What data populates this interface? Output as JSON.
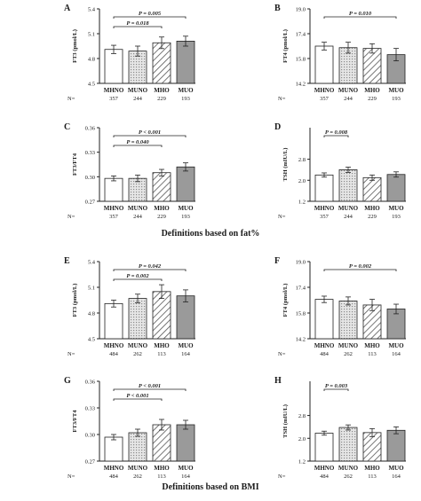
{
  "category_labels": [
    "MHNO",
    "MUNO",
    "MHO",
    "MUO"
  ],
  "n_prefix": "N=",
  "section_titles": [
    "Definitions based on fat%",
    "Definitions based on BMI"
  ],
  "colors": {
    "bar_fill_white": "#ffffff",
    "bar_fill_light": "#d9d9d9",
    "bar_fill_dark": "#9a9a9a",
    "stroke": "#222222"
  },
  "chart_data": [
    {
      "id": "fat-ft3",
      "letter": "A",
      "type": "bar",
      "ylabel": "FT3 (pmol/L)",
      "categories": [
        "MHNO",
        "MUNO",
        "MHO",
        "MUO"
      ],
      "values": [
        4.91,
        4.89,
        4.99,
        5.01
      ],
      "errors": [
        0.05,
        0.06,
        0.07,
        0.06
      ],
      "ylim": [
        4.5,
        5.4
      ],
      "yticks": [
        "4.5",
        "4.8",
        "5.1",
        "5.4"
      ],
      "tick_values": [
        4.5,
        4.8,
        5.1,
        5.4
      ],
      "n": [
        "357",
        "244",
        "229",
        "193"
      ],
      "annotations": [
        {
          "text": "P = 0.005",
          "from": 0,
          "to": 3
        },
        {
          "text": "P = 0.018",
          "from": 0,
          "to": 2
        }
      ]
    },
    {
      "id": "fat-ft4",
      "letter": "B",
      "type": "bar",
      "ylabel": "FT4 (pmol/L)",
      "categories": [
        "MHNO",
        "MUNO",
        "MHO",
        "MUO"
      ],
      "values": [
        16.6,
        16.5,
        16.45,
        16.05
      ],
      "errors": [
        0.25,
        0.35,
        0.3,
        0.4
      ],
      "ylim": [
        14.2,
        19.0
      ],
      "yticks": [
        "14.2",
        "15.8",
        "17.4",
        "19.0"
      ],
      "tick_values": [
        14.2,
        15.8,
        17.4,
        19.0
      ],
      "n": [
        "357",
        "244",
        "229",
        "193"
      ],
      "annotations": [
        {
          "text": "P = 0.010",
          "from": 0,
          "to": 3
        }
      ]
    },
    {
      "id": "fat-ratio",
      "letter": "C",
      "type": "bar",
      "ylabel": "FT3/FT4",
      "categories": [
        "MHNO",
        "MUNO",
        "MHO",
        "MUO"
      ],
      "values": [
        0.298,
        0.298,
        0.305,
        0.312
      ],
      "errors": [
        0.003,
        0.004,
        0.004,
        0.005
      ],
      "ylim": [
        0.27,
        0.36
      ],
      "yticks": [
        "0.27",
        "0.30",
        "0.33",
        "0.36"
      ],
      "tick_values": [
        0.27,
        0.3,
        0.33,
        0.36
      ],
      "n": [
        "357",
        "244",
        "229",
        "193"
      ],
      "annotations": [
        {
          "text": "P < 0.001",
          "from": 0,
          "to": 3
        },
        {
          "text": "P = 0.040",
          "from": 0,
          "to": 2
        }
      ]
    },
    {
      "id": "fat-tsh",
      "letter": "D",
      "type": "bar",
      "ylabel": "TSH (mIU/L)",
      "categories": [
        "MHNO",
        "MUNO",
        "MHO",
        "MUO"
      ],
      "values": [
        2.2,
        2.4,
        2.1,
        2.22
      ],
      "errors": [
        0.08,
        0.1,
        0.1,
        0.1
      ],
      "ylim": [
        1.2,
        4.0
      ],
      "yticks": [
        "1.2",
        "2.0",
        "2.8"
      ],
      "tick_values": [
        1.2,
        2.0,
        2.8
      ],
      "n": [
        "357",
        "244",
        "229",
        "193"
      ],
      "annotations": [
        {
          "text": "P = 0.008",
          "from": 0,
          "to": 1
        }
      ]
    },
    {
      "id": "bmi-ft3",
      "letter": "E",
      "type": "bar",
      "ylabel": "FT3 (pmol/L)",
      "categories": [
        "MHNO",
        "MUNO",
        "MHO",
        "MUO"
      ],
      "values": [
        4.91,
        4.97,
        5.05,
        5.0
      ],
      "errors": [
        0.04,
        0.05,
        0.08,
        0.07
      ],
      "ylim": [
        4.5,
        5.4
      ],
      "yticks": [
        "4.5",
        "4.8",
        "5.1",
        "5.4"
      ],
      "tick_values": [
        4.5,
        4.8,
        5.1,
        5.4
      ],
      "n": [
        "484",
        "262",
        "113",
        "164"
      ],
      "annotations": [
        {
          "text": "P = 0.042",
          "from": 0,
          "to": 3
        },
        {
          "text": "P = 0.002",
          "from": 0,
          "to": 2
        }
      ]
    },
    {
      "id": "bmi-ft4",
      "letter": "F",
      "type": "bar",
      "ylabel": "FT4 (pmol/L)",
      "categories": [
        "MHNO",
        "MUNO",
        "MHO",
        "MUO"
      ],
      "values": [
        16.65,
        16.55,
        16.3,
        16.05
      ],
      "errors": [
        0.2,
        0.25,
        0.35,
        0.3
      ],
      "ylim": [
        14.2,
        19.0
      ],
      "yticks": [
        "14.2",
        "15.8",
        "17.4",
        "19.0"
      ],
      "tick_values": [
        14.2,
        15.8,
        17.4,
        19.0
      ],
      "n": [
        "484",
        "262",
        "113",
        "164"
      ],
      "annotations": [
        {
          "text": "P = 0.002",
          "from": 0,
          "to": 3
        }
      ]
    },
    {
      "id": "bmi-ratio",
      "letter": "G",
      "type": "bar",
      "ylabel": "FT3/FT4",
      "categories": [
        "MHNO",
        "MUNO",
        "MHO",
        "MUO"
      ],
      "values": [
        0.297,
        0.302,
        0.311,
        0.311
      ],
      "errors": [
        0.003,
        0.004,
        0.006,
        0.005
      ],
      "ylim": [
        0.27,
        0.36
      ],
      "yticks": [
        "0.27",
        "0.30",
        "0.33",
        "0.36"
      ],
      "tick_values": [
        0.27,
        0.3,
        0.33,
        0.36
      ],
      "n": [
        "484",
        "262",
        "113",
        "164"
      ],
      "annotations": [
        {
          "text": "P < 0.001",
          "from": 0,
          "to": 3
        },
        {
          "text": "P < 0.001",
          "from": 0,
          "to": 2
        }
      ]
    },
    {
      "id": "bmi-tsh",
      "letter": "H",
      "type": "bar",
      "ylabel": "TSH (mIU/L)",
      "categories": [
        "MHNO",
        "MUNO",
        "MHO",
        "MUO"
      ],
      "values": [
        2.18,
        2.38,
        2.2,
        2.28
      ],
      "errors": [
        0.07,
        0.09,
        0.14,
        0.12
      ],
      "ylim": [
        1.2,
        4.0
      ],
      "yticks": [
        "1.2",
        "2.0",
        "2.8"
      ],
      "tick_values": [
        1.2,
        2.0,
        2.8
      ],
      "n": [
        "484",
        "262",
        "113",
        "164"
      ],
      "annotations": [
        {
          "text": "P = 0.003",
          "from": 0,
          "to": 1
        }
      ]
    }
  ]
}
